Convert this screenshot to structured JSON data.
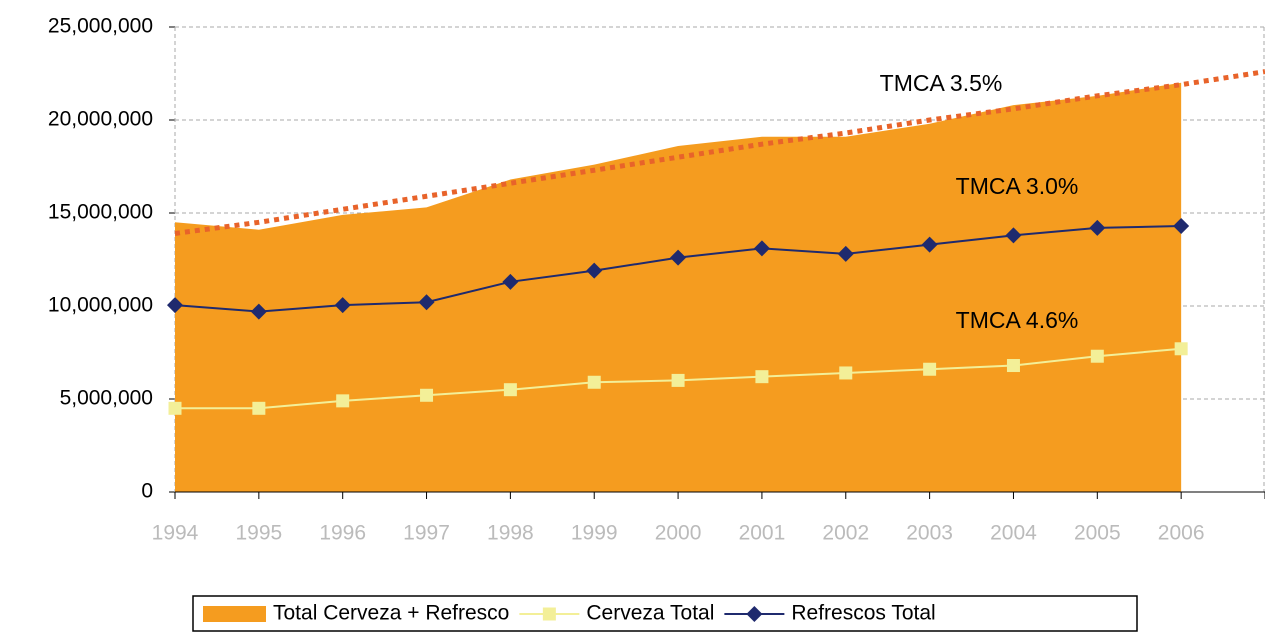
{
  "chart_data": {
    "type": "area-line",
    "categories": [
      "1994",
      "1995",
      "1996",
      "1997",
      "1998",
      "1999",
      "2000",
      "2001",
      "2002",
      "2003",
      "2004",
      "2005",
      "2006",
      null
    ],
    "series": [
      {
        "name": "Total Cerveza + Refresco",
        "type": "area",
        "color": "#f59c1f",
        "values": [
          14500000,
          14100000,
          14900000,
          15300000,
          16800000,
          17600000,
          18600000,
          19100000,
          19100000,
          19800000,
          20800000,
          21300000,
          22000000,
          null
        ]
      },
      {
        "name": "Cerveza Total",
        "type": "line",
        "color": "#f3ef98",
        "marker": "square",
        "values": [
          4500000,
          4500000,
          4900000,
          5200000,
          5500000,
          5900000,
          6000000,
          6200000,
          6400000,
          6600000,
          6800000,
          7300000,
          7700000,
          null
        ]
      },
      {
        "name": "Refrescos Total",
        "type": "line",
        "color": "#1f2a6e",
        "marker": "diamond",
        "values": [
          10050000,
          9700000,
          10050000,
          10200000,
          11300000,
          11900000,
          12600000,
          13100000,
          12800000,
          13300000,
          13800000,
          14200000,
          14300000,
          null
        ]
      }
    ],
    "trendline": {
      "color": "#e8632a",
      "values": [
        13900000,
        14500000,
        15200000,
        15900000,
        16600000,
        17300000,
        18000000,
        18700000,
        19300000,
        20000000,
        20600000,
        21300000,
        21900000,
        22600000
      ]
    },
    "annotations": [
      "TMCA 3.5%",
      "TMCA 3.0%",
      "TMCA 4.6%"
    ],
    "ylim": [
      0,
      25000000
    ],
    "yticks": [
      0,
      {
        "value": 5000000,
        "label": "5,000,000"
      },
      {
        "value": 10000000,
        "label": "10,000,000"
      },
      {
        "value": 15000000,
        "label": "15,000,000"
      },
      {
        "value": 20000000,
        "label": "20,000,000"
      },
      {
        "value": 25000000,
        "label": "25,000,000"
      }
    ],
    "grid": true
  }
}
